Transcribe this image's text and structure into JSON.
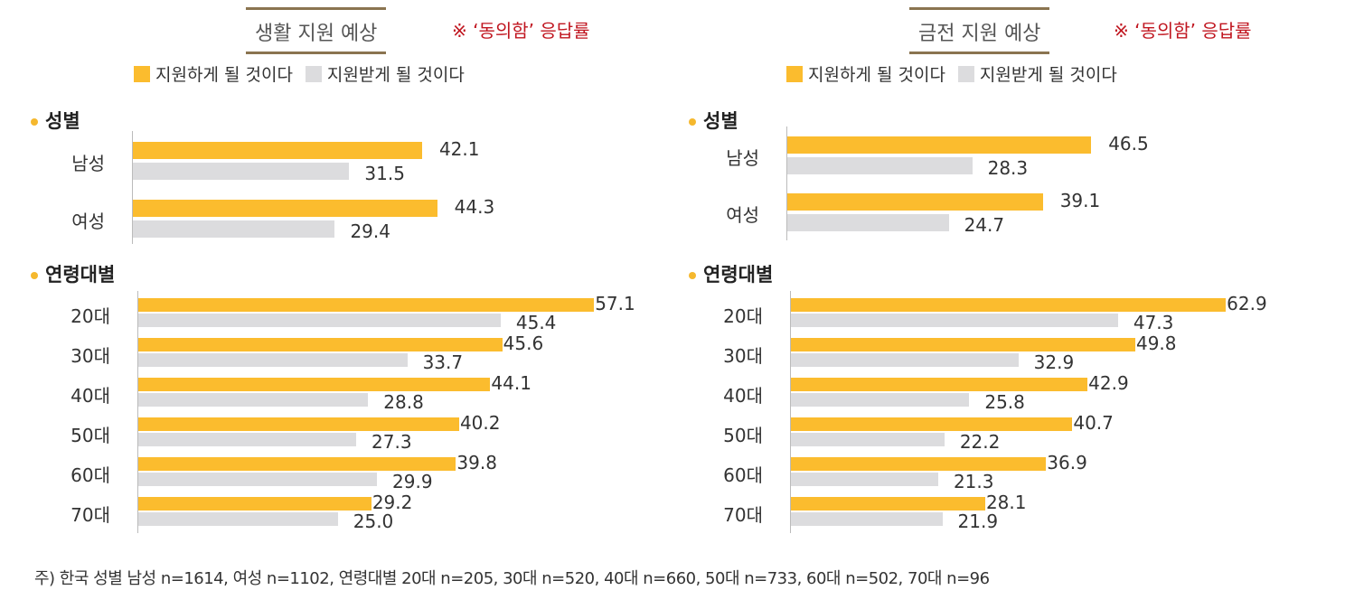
{
  "colors": {
    "support_give": "#FBBC2E",
    "support_receive": "#DCDCDE",
    "title_rule": "#8A7450",
    "note": "#C0151F"
  },
  "legend": [
    "지원하게 될 것이다",
    "지원받게 될 것이다"
  ],
  "note": "※ ‘동의함’ 응답률",
  "sections": {
    "gender": "성별",
    "age": "연령대별"
  },
  "chart_data": [
    {
      "type": "bar",
      "orientation": "horizontal",
      "title": "생활 지원 예상",
      "series_names": [
        "지원하게 될 것이다",
        "지원받게 될 것이다"
      ],
      "gender": {
        "categories": [
          "남성",
          "여성"
        ],
        "give": [
          42.1,
          44.3
        ],
        "receive": [
          31.5,
          29.4
        ]
      },
      "age": {
        "categories": [
          "20대",
          "30대",
          "40대",
          "50대",
          "60대",
          "70대"
        ],
        "give": [
          57.1,
          45.6,
          44.1,
          40.2,
          39.8,
          29.2
        ],
        "receive": [
          45.4,
          33.7,
          28.8,
          27.3,
          29.9,
          25.0
        ]
      }
    },
    {
      "type": "bar",
      "orientation": "horizontal",
      "title": "금전 지원 예상",
      "series_names": [
        "지원하게 될 것이다",
        "지원받게 될 것이다"
      ],
      "gender": {
        "categories": [
          "남성",
          "여성"
        ],
        "give": [
          46.5,
          39.1
        ],
        "receive": [
          28.3,
          24.7
        ]
      },
      "age": {
        "categories": [
          "20대",
          "30대",
          "40대",
          "50대",
          "60대",
          "70대"
        ],
        "give": [
          62.9,
          49.8,
          42.9,
          40.7,
          36.9,
          28.1
        ],
        "receive": [
          47.3,
          32.9,
          25.8,
          22.2,
          21.3,
          21.9
        ]
      }
    }
  ],
  "footnote": "주) 한국 성별 남성 n=1614, 여성 n=1102, 연령대별 20대 n=205, 30대 n=520, 40대 n=660, 50대 n=733, 60대 n=502, 70대 n=96"
}
